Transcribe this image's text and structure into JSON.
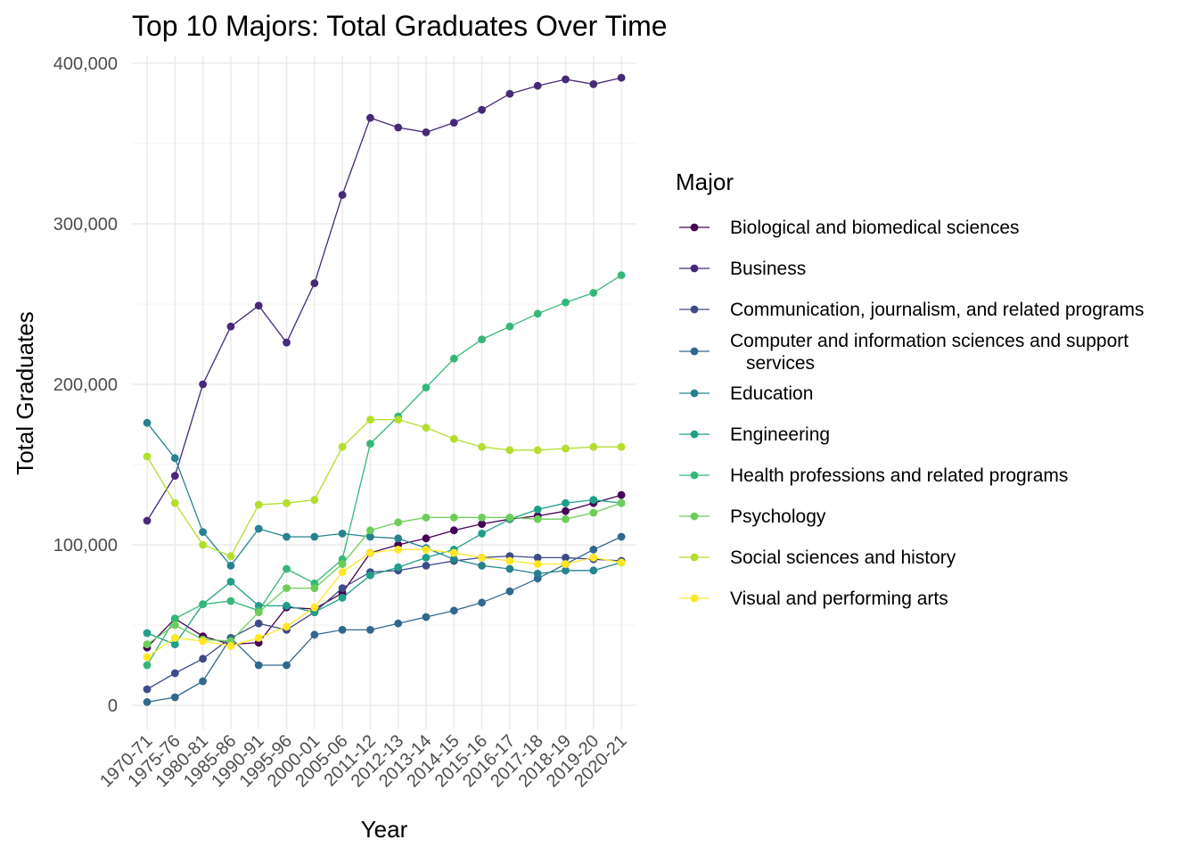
{
  "chart_data": {
    "type": "line",
    "title": "Top 10 Majors: Total Graduates Over Time",
    "xlabel": "Year",
    "ylabel": "Total Graduates",
    "ylim": [
      -15000,
      405000
    ],
    "yticks": [
      0,
      100000,
      200000,
      300000,
      400000
    ],
    "ytick_labels": [
      "0",
      "100,000",
      "200,000",
      "300,000",
      "400,000"
    ],
    "grid": true,
    "legend_title": "Major",
    "legend_position": "right",
    "categories": [
      "1970-71",
      "1975-76",
      "1980-81",
      "1985-86",
      "1990-91",
      "1995-96",
      "2000-01",
      "2005-06",
      "2011-12",
      "2012-13",
      "2013-14",
      "2014-15",
      "2015-16",
      "2016-17",
      "2017-18",
      "2018-19",
      "2019-20",
      "2020-21"
    ],
    "series": [
      {
        "name": "Biological and biomedical sciences",
        "color": "#440154",
        "values": [
          36000,
          54000,
          43000,
          38000,
          39000,
          61000,
          60000,
          70000,
          95000,
          100000,
          104000,
          109000,
          113000,
          116000,
          118000,
          121000,
          126000,
          131000
        ]
      },
      {
        "name": "Business",
        "color": "#482878",
        "values": [
          115000,
          143000,
          200000,
          236000,
          249000,
          226000,
          263000,
          318000,
          366000,
          360000,
          357000,
          363000,
          371000,
          381000,
          386000,
          390000,
          387000,
          391000
        ]
      },
      {
        "name": "Communication, journalism, and related programs",
        "color": "#3E4A89",
        "values": [
          10000,
          20000,
          29000,
          42000,
          51000,
          47000,
          58000,
          73000,
          83000,
          84000,
          87000,
          90000,
          92000,
          93000,
          92000,
          92000,
          91000,
          90000
        ]
      },
      {
        "name": "Computer and information sciences and support\nservices",
        "color": "#31688E",
        "values": [
          2000,
          5000,
          15000,
          42000,
          25000,
          25000,
          44000,
          47000,
          47000,
          51000,
          55000,
          59000,
          64000,
          71000,
          79000,
          88000,
          97000,
          105000
        ]
      },
      {
        "name": "Education",
        "color": "#26828E",
        "values": [
          176000,
          154000,
          108000,
          87000,
          110000,
          105000,
          105000,
          107000,
          105000,
          104000,
          98000,
          91000,
          87000,
          85000,
          82000,
          84000,
          84000,
          89000
        ]
      },
      {
        "name": "Engineering",
        "color": "#1F9E89",
        "values": [
          45000,
          38000,
          63000,
          77000,
          62000,
          62000,
          58000,
          67000,
          81000,
          86000,
          92000,
          97000,
          107000,
          116000,
          122000,
          126000,
          128000,
          126000
        ]
      },
      {
        "name": "Health professions and related programs",
        "color": "#35B779",
        "values": [
          25000,
          54000,
          63000,
          65000,
          59000,
          85000,
          76000,
          91000,
          163000,
          180000,
          198000,
          216000,
          228000,
          236000,
          244000,
          251000,
          257000,
          268000
        ]
      },
      {
        "name": "Psychology",
        "color": "#6DCD59",
        "values": [
          38000,
          50000,
          41000,
          40000,
          58000,
          73000,
          73000,
          88000,
          109000,
          114000,
          117000,
          117000,
          117000,
          117000,
          116000,
          116000,
          120000,
          126000
        ]
      },
      {
        "name": "Social sciences and history",
        "color": "#B4DE2C",
        "values": [
          155000,
          126000,
          100000,
          93000,
          125000,
          126000,
          128000,
          161000,
          178000,
          178000,
          173000,
          166000,
          161000,
          159000,
          159000,
          160000,
          161000,
          161000
        ]
      },
      {
        "name": "Visual and performing arts",
        "color": "#FDE725",
        "values": [
          30000,
          42000,
          40000,
          37000,
          42000,
          49000,
          61000,
          83000,
          95000,
          97000,
          97000,
          95000,
          92000,
          90000,
          88000,
          88000,
          92000,
          89000
        ]
      }
    ]
  }
}
